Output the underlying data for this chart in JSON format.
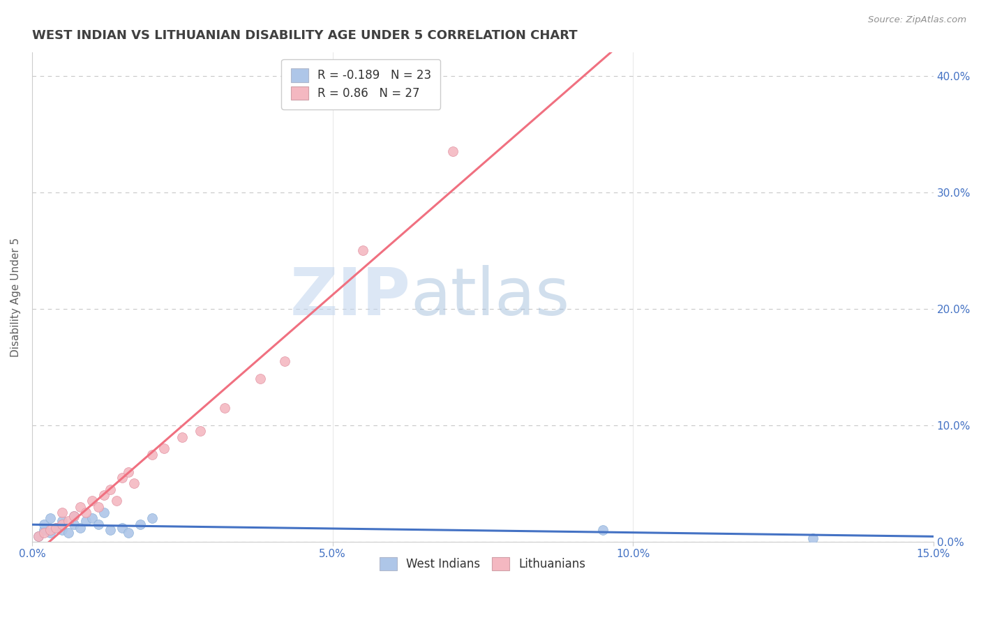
{
  "title": "WEST INDIAN VS LITHUANIAN DISABILITY AGE UNDER 5 CORRELATION CHART",
  "source_text": "Source: ZipAtlas.com",
  "ylabel": "Disability Age Under 5",
  "xlim": [
    0.0,
    0.15
  ],
  "ylim": [
    0.0,
    0.42
  ],
  "xticks": [
    0.0,
    0.05,
    0.1,
    0.15
  ],
  "xtick_labels": [
    "0.0%",
    "5.0%",
    "10.0%",
    "15.0%"
  ],
  "ytick_labels_right": [
    "0.0%",
    "10.0%",
    "20.0%",
    "30.0%",
    "40.0%"
  ],
  "yticks_right": [
    0.0,
    0.1,
    0.2,
    0.3,
    0.4
  ],
  "west_indian_R": -0.189,
  "west_indian_N": 23,
  "lithuanian_R": 0.86,
  "lithuanian_N": 27,
  "west_indian_color": "#aec6e8",
  "lithuanian_color": "#f4b8c1",
  "west_indian_line_color": "#4472c4",
  "lithuanian_line_color": "#f07080",
  "background_color": "#ffffff",
  "grid_color": "#c8c8c8",
  "title_color": "#404040",
  "source_color": "#909090",
  "west_indians_x": [
    0.001,
    0.002,
    0.002,
    0.003,
    0.003,
    0.004,
    0.005,
    0.005,
    0.006,
    0.007,
    0.007,
    0.008,
    0.009,
    0.01,
    0.011,
    0.012,
    0.013,
    0.015,
    0.016,
    0.018,
    0.02,
    0.095,
    0.13
  ],
  "west_indians_y": [
    0.005,
    0.01,
    0.015,
    0.008,
    0.02,
    0.012,
    0.01,
    0.018,
    0.008,
    0.022,
    0.015,
    0.012,
    0.018,
    0.02,
    0.015,
    0.025,
    0.01,
    0.012,
    0.008,
    0.015,
    0.02,
    0.01,
    0.003
  ],
  "lithuanians_x": [
    0.001,
    0.002,
    0.003,
    0.004,
    0.005,
    0.005,
    0.006,
    0.007,
    0.008,
    0.009,
    0.01,
    0.011,
    0.012,
    0.013,
    0.014,
    0.015,
    0.016,
    0.017,
    0.02,
    0.022,
    0.025,
    0.028,
    0.032,
    0.038,
    0.042,
    0.055,
    0.07
  ],
  "lithuanians_y": [
    0.005,
    0.008,
    0.01,
    0.012,
    0.015,
    0.025,
    0.018,
    0.022,
    0.03,
    0.025,
    0.035,
    0.03,
    0.04,
    0.045,
    0.035,
    0.055,
    0.06,
    0.05,
    0.075,
    0.08,
    0.09,
    0.095,
    0.115,
    0.14,
    0.155,
    0.25,
    0.335
  ],
  "watermark_zip": "ZIP",
  "watermark_atlas": "atlas",
  "title_fontsize": 13,
  "axis_fontsize": 11,
  "tick_fontsize": 11,
  "legend_fontsize": 12,
  "marker_size": 100
}
